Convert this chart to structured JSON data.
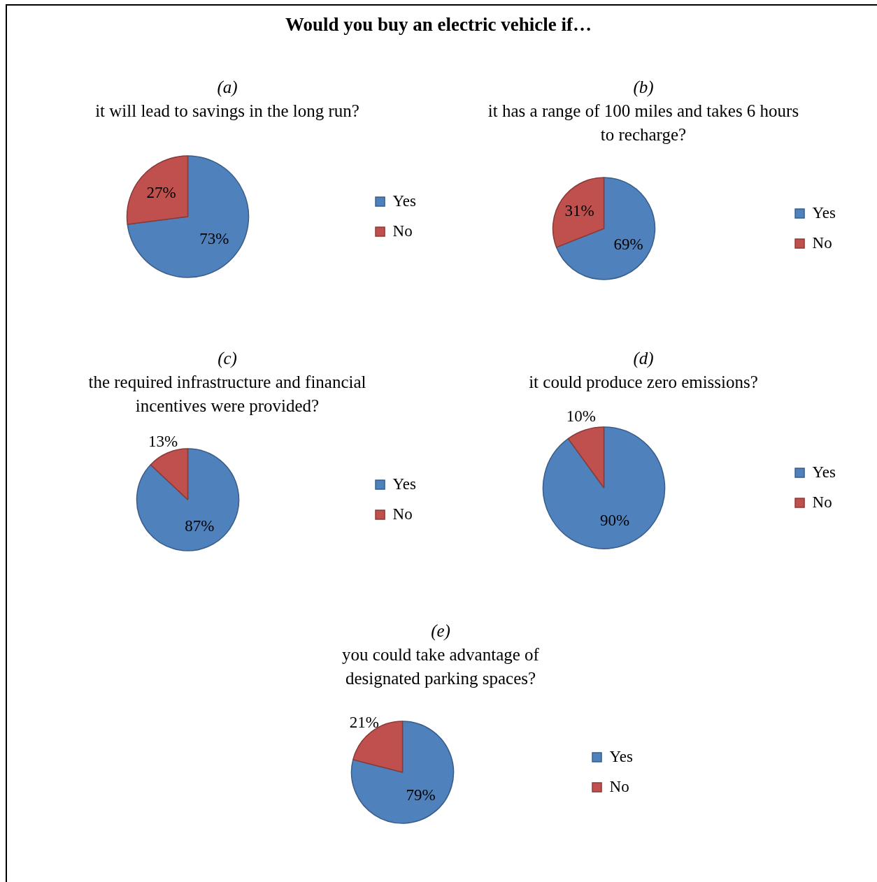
{
  "chart_data": [
    {
      "type": "other",
      "title": "Would you buy an electric vehicle if…"
    },
    {
      "type": "pie",
      "title": "(a)",
      "subtitle": "it will lead to savings in the long run?",
      "categories": [
        "Yes",
        "No"
      ],
      "values": [
        73,
        27
      ],
      "colors": [
        "#4f81bd",
        "#c0504d"
      ],
      "value_labels": [
        "73%",
        "27%"
      ],
      "legend": "right"
    },
    {
      "type": "pie",
      "title": "(b)",
      "subtitle": "it has a range of 100 miles and takes 6 hours to recharge?",
      "categories": [
        "Yes",
        "No"
      ],
      "values": [
        69,
        31
      ],
      "colors": [
        "#4f81bd",
        "#c0504d"
      ],
      "value_labels": [
        "69%",
        "31%"
      ],
      "legend": "right"
    },
    {
      "type": "pie",
      "title": "(c)",
      "subtitle": "the required infrastructure and financial incentives were provided?",
      "categories": [
        "Yes",
        "No"
      ],
      "values": [
        87,
        13
      ],
      "colors": [
        "#4f81bd",
        "#c0504d"
      ],
      "value_labels": [
        "87%",
        "13%"
      ],
      "legend": "right"
    },
    {
      "type": "pie",
      "title": "(d)",
      "subtitle": "it could produce zero emissions?",
      "categories": [
        "Yes",
        "No"
      ],
      "values": [
        90,
        10
      ],
      "colors": [
        "#4f81bd",
        "#c0504d"
      ],
      "value_labels": [
        "90%",
        "10%"
      ],
      "legend": "right"
    },
    {
      "type": "pie",
      "title": "(e)",
      "subtitle": "you could take advantage of designated parking spaces?",
      "categories": [
        "Yes",
        "No"
      ],
      "values": [
        79,
        21
      ],
      "colors": [
        "#4f81bd",
        "#c0504d"
      ],
      "value_labels": [
        "79%",
        "21%"
      ],
      "legend": "right"
    }
  ]
}
